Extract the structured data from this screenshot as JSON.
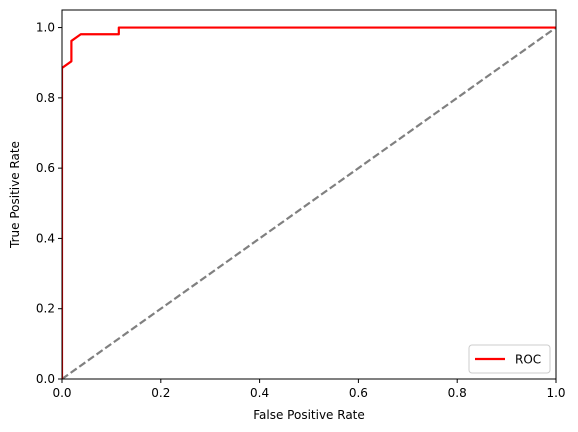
{
  "chart_data": {
    "type": "line",
    "title": "",
    "xlabel": "False Positive Rate",
    "ylabel": "True Positive Rate",
    "xlim": [
      0.0,
      1.0
    ],
    "ylim": [
      0.0,
      1.05
    ],
    "grid": false,
    "legend_position": "lower-right",
    "x_ticks": [
      0.0,
      0.2,
      0.4,
      0.6,
      0.8,
      1.0
    ],
    "x_tick_labels": [
      "0.0",
      "0.2",
      "0.4",
      "0.6",
      "0.8",
      "1.0"
    ],
    "y_ticks": [
      0.0,
      0.2,
      0.4,
      0.6,
      0.8,
      1.0
    ],
    "y_tick_labels": [
      "0.0",
      "0.2",
      "0.4",
      "0.6",
      "0.8",
      "1.0"
    ],
    "series": [
      {
        "name": "ROC",
        "color": "#ff0000",
        "style": "solid",
        "x": [
          0.0,
          0.0,
          0.0,
          0.019,
          0.019,
          0.038,
          0.115,
          0.115,
          1.0
        ],
        "y": [
          0.0,
          0.885,
          0.885,
          0.904,
          0.962,
          0.981,
          0.981,
          1.0,
          1.0
        ]
      },
      {
        "color": "#808080",
        "style": "dashed",
        "x": [
          0.0,
          1.0
        ],
        "y": [
          0.0,
          1.0
        ]
      }
    ]
  }
}
